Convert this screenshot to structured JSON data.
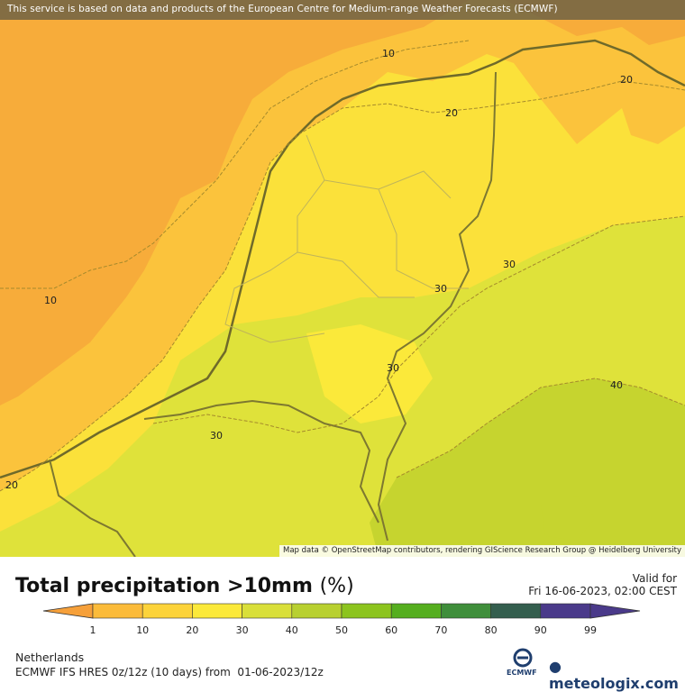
{
  "header": {
    "attribution": "This service is based on data and products of the European Centre for Medium-range Weather Forecasts (ECMWF)"
  },
  "map": {
    "credit": "Map data © OpenStreetMap contributors, rendering GIScience Research Group @ Heidelberg University",
    "contour_labels": [
      "10",
      "20",
      "30",
      "40"
    ]
  },
  "legend": {
    "title": "Total precipitation >10mm",
    "unit": "(%)",
    "valid_label": "Valid for",
    "valid_time": "Fri 16-06-2023, 02:00 CEST",
    "scale_ticks": [
      "1",
      "10",
      "20",
      "30",
      "40",
      "50",
      "60",
      "70",
      "80",
      "90",
      "99"
    ],
    "scale_colors": [
      "#f5a43a",
      "#fbbb3a",
      "#fcd33a",
      "#fbe93a",
      "#d9df3a",
      "#b8d030",
      "#8cc41e",
      "#55ae1f",
      "#3f8e3b",
      "#345e4e",
      "#4a3a8a"
    ]
  },
  "footer": {
    "region": "Netherlands",
    "model": "ECMWF IFS HRES 0z/12z (10 days) from  01-06-2023/12z",
    "ecmwf_logo": "ECMWF",
    "brand": "meteologix.com"
  }
}
